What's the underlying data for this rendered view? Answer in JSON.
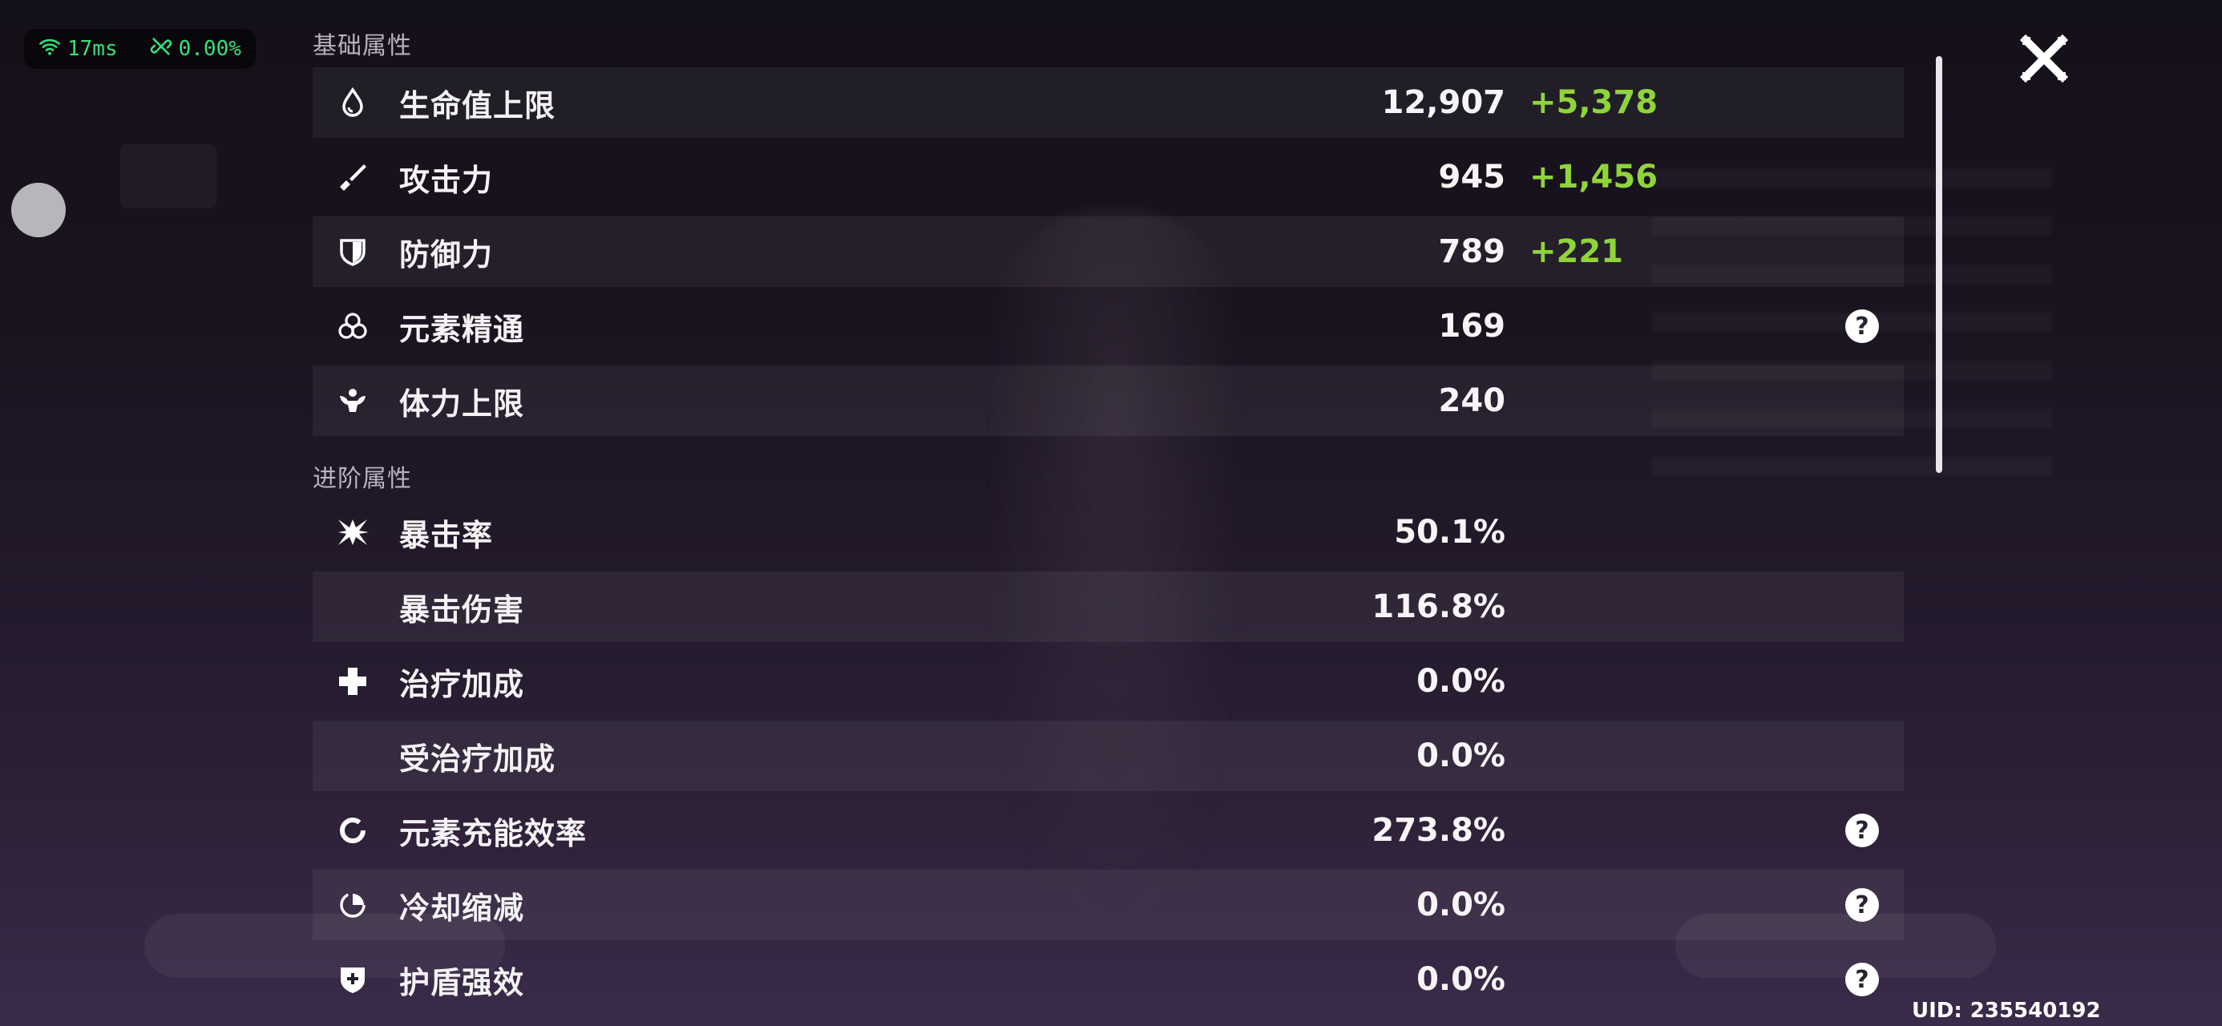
{
  "overlay": {
    "ping": "17ms",
    "loss": "0.00%"
  },
  "sections": {
    "base_title": "基础属性",
    "advanced_title": "进阶属性"
  },
  "base_stats": [
    {
      "label": "生命值上限",
      "value": "12,907",
      "bonus": "+5,378",
      "icon": "hp-drop-icon",
      "help": ""
    },
    {
      "label": "攻击力",
      "value": "945",
      "bonus": "+1,456",
      "icon": "sword-icon",
      "help": ""
    },
    {
      "label": "防御力",
      "value": "789",
      "bonus": "+221",
      "icon": "shield-icon",
      "help": ""
    },
    {
      "label": "元素精通",
      "value": "169",
      "bonus": "",
      "icon": "element-mastery-icon",
      "help": "?"
    },
    {
      "label": "体力上限",
      "value": "240",
      "bonus": "",
      "icon": "stamina-icon",
      "help": ""
    }
  ],
  "advanced_stats": [
    {
      "label": "暴击率",
      "value": "50.1%",
      "icon": "crit-star-icon",
      "help": ""
    },
    {
      "label": "暴击伤害",
      "value": "116.8%",
      "icon": "",
      "help": ""
    },
    {
      "label": "治疗加成",
      "value": "0.0%",
      "icon": "healing-cross-icon",
      "help": ""
    },
    {
      "label": "受治疗加成",
      "value": "0.0%",
      "icon": "",
      "help": ""
    },
    {
      "label": "元素充能效率",
      "value": "273.8%",
      "icon": "energy-recharge-icon",
      "help": "?"
    },
    {
      "label": "冷却缩减",
      "value": "0.0%",
      "icon": "cooldown-icon",
      "help": "?"
    },
    {
      "label": "护盾强效",
      "value": "0.0%",
      "icon": "shield-strength-icon",
      "help": "?"
    }
  ],
  "uid": {
    "label": "UID:",
    "value": "235540192"
  },
  "colors": {
    "bonus": "#8fd43a",
    "overlay_text": "#38e07a"
  }
}
